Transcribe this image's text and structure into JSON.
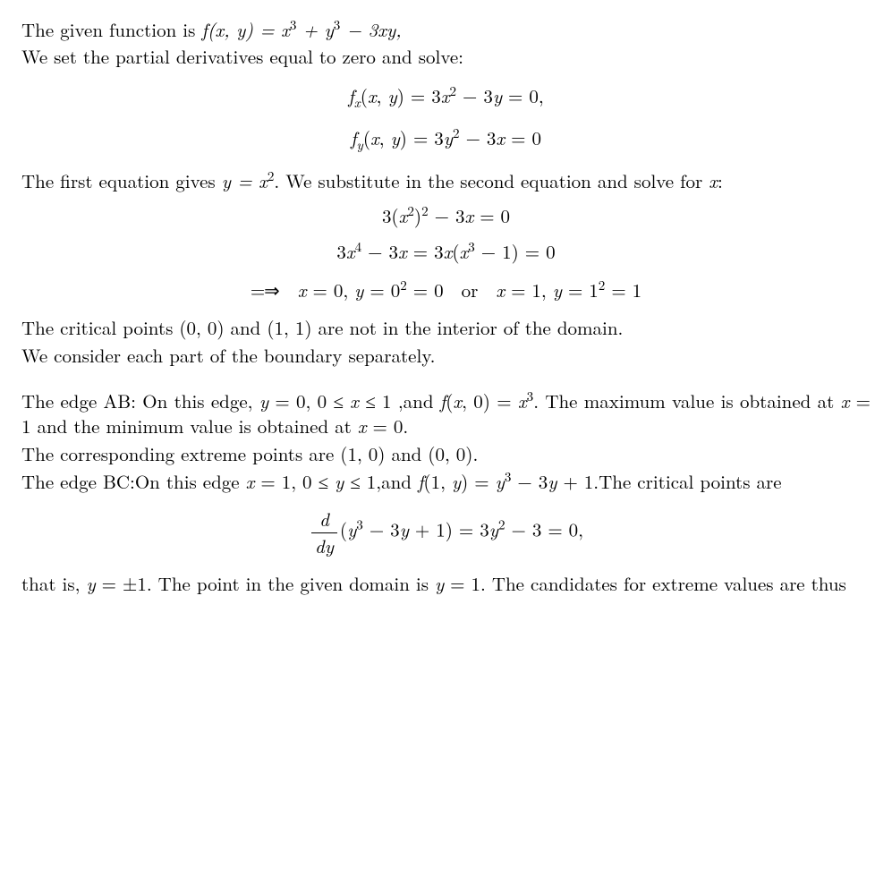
{
  "colors": {
    "text": "#000000",
    "background": "#ffffff"
  },
  "typography": {
    "base_fontsize_pt": 16,
    "family": "Computer Modern / serif",
    "line_height": 1.35,
    "align": "justify"
  },
  "p1a": "The given function is ",
  "fn_def": "f(x, y) = x³ + y³ − 3xy,",
  "p1b": "We set the partial derivatives equal to zero and solve:",
  "eq1": "fₓ(x, y) = 3x² − 3y = 0,",
  "eq2": "f_y(x, y) = 3y² − 3x = 0",
  "p2a": "The first equation gives ",
  "p2_yx2": "y = x²",
  "p2b": ". We substitute in the second equation and solve for ",
  "p2_x": "x",
  "p2c": ":",
  "eq3": "3(x²)² − 3x = 0",
  "eq4": "3x⁴ − 3x = 3x(x³ − 1) = 0",
  "eq5_pre": "⟹  ",
  "eq5a": "x = 0, y = 0² = 0",
  "eq5_or": "or",
  "eq5b": "x = 1, y = 1² = 1",
  "p3": "The critical points (0, 0) and (1, 1) are not in the interior of the domain.",
  "p4": "We consider each part of the boundary separately.",
  "p5a": "The edge AB: On this edge, ",
  "p5_dom": "y = 0, 0 ≤ x ≤ 1",
  "p5b": " ,and ",
  "p5_fn": "f(x, 0) = x³",
  "p5c": ". The maximum value is obtained at ",
  "p5_x1": "x = 1",
  "p5d": " and the minimum value is obtained at ",
  "p5_x0": "x = 0",
  "p5e": ".",
  "p6": "The corresponding extreme points are (1, 0) and (0, 0).",
  "p7a": "The edge BC:On this edge ",
  "p7_dom": "x = 1, 0 ≤ y ≤ 1",
  "p7b": ",and ",
  "p7_fn": "f(1, y) = y³ − 3y + 1",
  "p7c": ".The critical points are",
  "eq6_frac_num": "d",
  "eq6_frac_den": "dy",
  "eq6_body": "(y³ − 3y + 1) = 3y² − 3 = 0,",
  "p8a": "that is, ",
  "p8_ypm": "y = ±1",
  "p8b": ". The point in the given domain is ",
  "p8_y1": "y = 1",
  "p8c": ". The candidates for extreme values are thus"
}
